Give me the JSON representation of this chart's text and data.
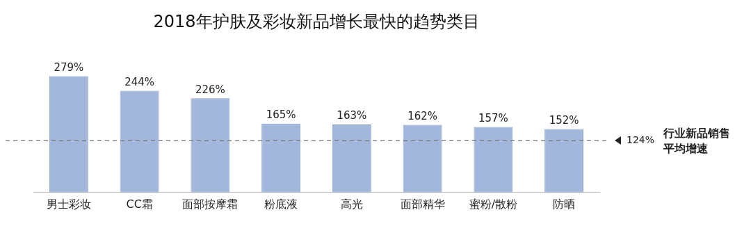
{
  "chart_data": {
    "type": "bar",
    "title": "2018年护肤及彩妆新品增长最快的趋势类目",
    "categories": [
      "男士彩妆",
      "CC霜",
      "面部按摩霜",
      "粉底液",
      "高光",
      "面部精华",
      "蜜粉/散粉",
      "防晒"
    ],
    "values": [
      279,
      244,
      226,
      165,
      163,
      162,
      157,
      152
    ],
    "value_labels": [
      "279%",
      "244%",
      "226%",
      "165%",
      "163%",
      "162%",
      "157%",
      "152%"
    ],
    "color": "#a3b7dc",
    "ref_lines": [
      {
        "axis": "y",
        "value": 124,
        "label": "124%",
        "color": "#777777",
        "line_style": "dashed"
      }
    ],
    "annotations": [
      "行业新品销售平均增速"
    ],
    "grid": false,
    "legend": false
  }
}
